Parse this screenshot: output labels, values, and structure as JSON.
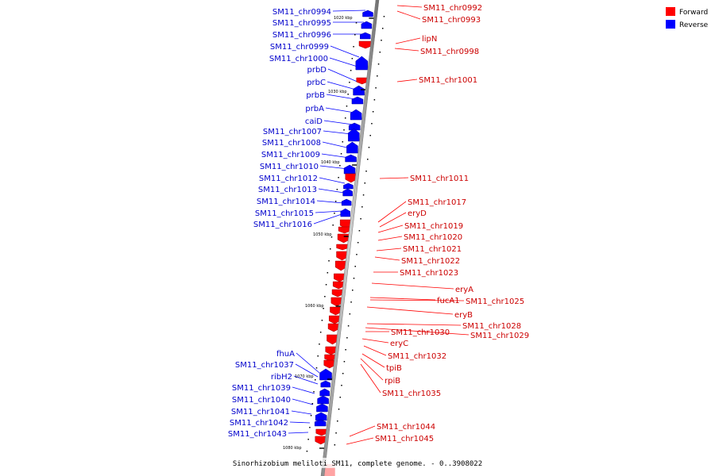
{
  "caption": "Sinorhizobium meliloti SM11, complete genome. - 0..3908022",
  "legend": [
    {
      "label": "Forward",
      "color": "#ff0000"
    },
    {
      "label": "Reverse",
      "color": "#0000ff"
    }
  ],
  "ticks": [
    "1020 kbp",
    "1030 kbp",
    "1040 kbp",
    "1050 kbp",
    "1060 kbp",
    "1070 kbp",
    "1080 kbp"
  ],
  "genes": [
    {
      "name": "SM11_chr0992",
      "strand": "forward",
      "side": "right"
    },
    {
      "name": "SM11_chr0993",
      "strand": "forward",
      "side": "right"
    },
    {
      "name": "SM11_chr0994",
      "strand": "reverse",
      "side": "left"
    },
    {
      "name": "SM11_chr0995",
      "strand": "reverse",
      "side": "left"
    },
    {
      "name": "SM11_chr0996",
      "strand": "reverse",
      "side": "left"
    },
    {
      "name": "lipN",
      "strand": "forward",
      "side": "right"
    },
    {
      "name": "SM11_chr0999",
      "strand": "reverse",
      "side": "left"
    },
    {
      "name": "SM11_chr0998",
      "strand": "forward",
      "side": "right"
    },
    {
      "name": "SM11_chr1000",
      "strand": "reverse",
      "side": "left"
    },
    {
      "name": "prbD",
      "strand": "reverse",
      "side": "left"
    },
    {
      "name": "SM11_chr1001",
      "strand": "forward",
      "side": "right"
    },
    {
      "name": "prbC",
      "strand": "reverse",
      "side": "left"
    },
    {
      "name": "prbB",
      "strand": "reverse",
      "side": "left"
    },
    {
      "name": "prbA",
      "strand": "reverse",
      "side": "left"
    },
    {
      "name": "caiD",
      "strand": "reverse",
      "side": "left"
    },
    {
      "name": "SM11_chr1007",
      "strand": "reverse",
      "side": "left"
    },
    {
      "name": "SM11_chr1008",
      "strand": "reverse",
      "side": "left"
    },
    {
      "name": "SM11_chr1009",
      "strand": "reverse",
      "side": "left"
    },
    {
      "name": "SM11_chr1010",
      "strand": "reverse",
      "side": "left"
    },
    {
      "name": "SM11_chr1011",
      "strand": "forward",
      "side": "right"
    },
    {
      "name": "SM11_chr1012",
      "strand": "reverse",
      "side": "left"
    },
    {
      "name": "SM11_chr1013",
      "strand": "reverse",
      "side": "left"
    },
    {
      "name": "SM11_chr1014",
      "strand": "reverse",
      "side": "left"
    },
    {
      "name": "SM11_chr1017",
      "strand": "forward",
      "side": "right"
    },
    {
      "name": "SM11_chr1015",
      "strand": "reverse",
      "side": "left"
    },
    {
      "name": "eryD",
      "strand": "forward",
      "side": "right"
    },
    {
      "name": "SM11_chr1016",
      "strand": "reverse",
      "side": "left"
    },
    {
      "name": "SM11_chr1019",
      "strand": "forward",
      "side": "right"
    },
    {
      "name": "SM11_chr1020",
      "strand": "forward",
      "side": "right"
    },
    {
      "name": "SM11_chr1021",
      "strand": "forward",
      "side": "right"
    },
    {
      "name": "SM11_chr1022",
      "strand": "forward",
      "side": "right"
    },
    {
      "name": "SM11_chr1023",
      "strand": "forward",
      "side": "right"
    },
    {
      "name": "eryA",
      "strand": "forward",
      "side": "right"
    },
    {
      "name": "fucA1",
      "strand": "forward",
      "side": "right"
    },
    {
      "name": "SM11_chr1025",
      "strand": "forward",
      "side": "right"
    },
    {
      "name": "eryB",
      "strand": "forward",
      "side": "right"
    },
    {
      "name": "SM11_chr1028",
      "strand": "forward",
      "side": "right"
    },
    {
      "name": "SM11_chr1030",
      "strand": "forward",
      "side": "right"
    },
    {
      "name": "SM11_chr1029",
      "strand": "forward",
      "side": "right"
    },
    {
      "name": "eryC",
      "strand": "forward",
      "side": "right"
    },
    {
      "name": "fhuA",
      "strand": "reverse",
      "side": "left"
    },
    {
      "name": "SM11_chr1032",
      "strand": "forward",
      "side": "right"
    },
    {
      "name": "SM11_chr1037",
      "strand": "reverse",
      "side": "left"
    },
    {
      "name": "tpiB",
      "strand": "forward",
      "side": "right"
    },
    {
      "name": "ribH2",
      "strand": "reverse",
      "side": "left"
    },
    {
      "name": "rpiB",
      "strand": "forward",
      "side": "right"
    },
    {
      "name": "SM11_chr1039",
      "strand": "reverse",
      "side": "left"
    },
    {
      "name": "SM11_chr1035",
      "strand": "forward",
      "side": "right"
    },
    {
      "name": "SM11_chr1040",
      "strand": "reverse",
      "side": "left"
    },
    {
      "name": "SM11_chr1041",
      "strand": "reverse",
      "side": "left"
    },
    {
      "name": "SM11_chr1042",
      "strand": "reverse",
      "side": "left"
    },
    {
      "name": "SM11_chr1044",
      "strand": "forward",
      "side": "right"
    },
    {
      "name": "SM11_chr1043",
      "strand": "reverse",
      "side": "left"
    },
    {
      "name": "SM11_chr1045",
      "strand": "forward",
      "side": "right"
    }
  ]
}
